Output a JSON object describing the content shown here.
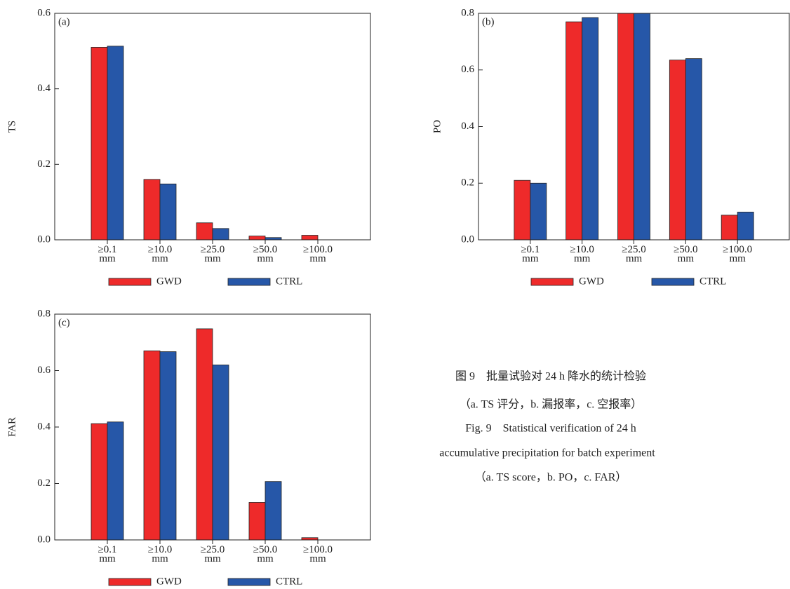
{
  "chart_data": [
    {
      "type": "bar",
      "panel_label": "(a)",
      "y_label": "TS",
      "categories": [
        "≥0.1 mm",
        "≥10.0 mm",
        "≥25.0 mm",
        "≥50.0 mm",
        "≥100.0 mm"
      ],
      "series": [
        {
          "name": "GWD",
          "color": "#ee2a2a",
          "values": [
            0.51,
            0.16,
            0.045,
            0.01,
            0.012
          ]
        },
        {
          "name": "CTRL",
          "color": "#2657a8",
          "values": [
            0.513,
            0.148,
            0.03,
            0.006,
            0
          ]
        }
      ],
      "ylim": [
        0,
        0.6
      ],
      "yticks": [
        {
          "value": 0,
          "label": "0.0"
        },
        0.2,
        0.4,
        0.6
      ]
    },
    {
      "type": "bar",
      "panel_label": "(b)",
      "y_label": "PO",
      "categories": [
        "≥0.1 mm",
        "≥10.0 mm",
        "≥25.0 mm",
        "≥50.0 mm",
        "≥100.0 mm"
      ],
      "series": [
        {
          "name": "GWD",
          "color": "#ee2a2a",
          "values": [
            0.21,
            0.77,
            0.8,
            0.635,
            0.087
          ]
        },
        {
          "name": "CTRL",
          "color": "#2657a8",
          "values": [
            0.2,
            0.785,
            0.8,
            0.64,
            0.098
          ]
        }
      ],
      "ylim": [
        0,
        0.8
      ],
      "yticks": [
        {
          "value": 0,
          "label": "0.0"
        },
        0.2,
        0.4,
        0.6,
        0.8
      ]
    },
    {
      "type": "bar",
      "panel_label": "(c)",
      "y_label": "FAR",
      "categories": [
        "≥0.1 mm",
        "≥10.0 mm",
        "≥25.0 mm",
        "≥50.0 mm",
        "≥100.0 mm"
      ],
      "series": [
        {
          "name": "GWD",
          "color": "#ee2a2a",
          "values": [
            0.412,
            0.67,
            0.748,
            0.133,
            0.008
          ]
        },
        {
          "name": "CTRL",
          "color": "#2657a8",
          "values": [
            0.418,
            0.667,
            0.62,
            0.207,
            0
          ]
        }
      ],
      "ylim": [
        0,
        0.8
      ],
      "yticks": [
        {
          "value": 0,
          "label": "0.0"
        },
        0.2,
        0.4,
        0.6,
        0.8
      ]
    }
  ],
  "caption": [
    "图 9　批量试验对 24 h 降水的统计检验",
    "（a. TS 评分，b. 漏报率，c. 空报率）",
    "Fig. 9　Statistical verification of 24 h",
    "accumulative precipitation for batch experiment",
    "（a. TS score，b. PO，c. FAR）"
  ]
}
